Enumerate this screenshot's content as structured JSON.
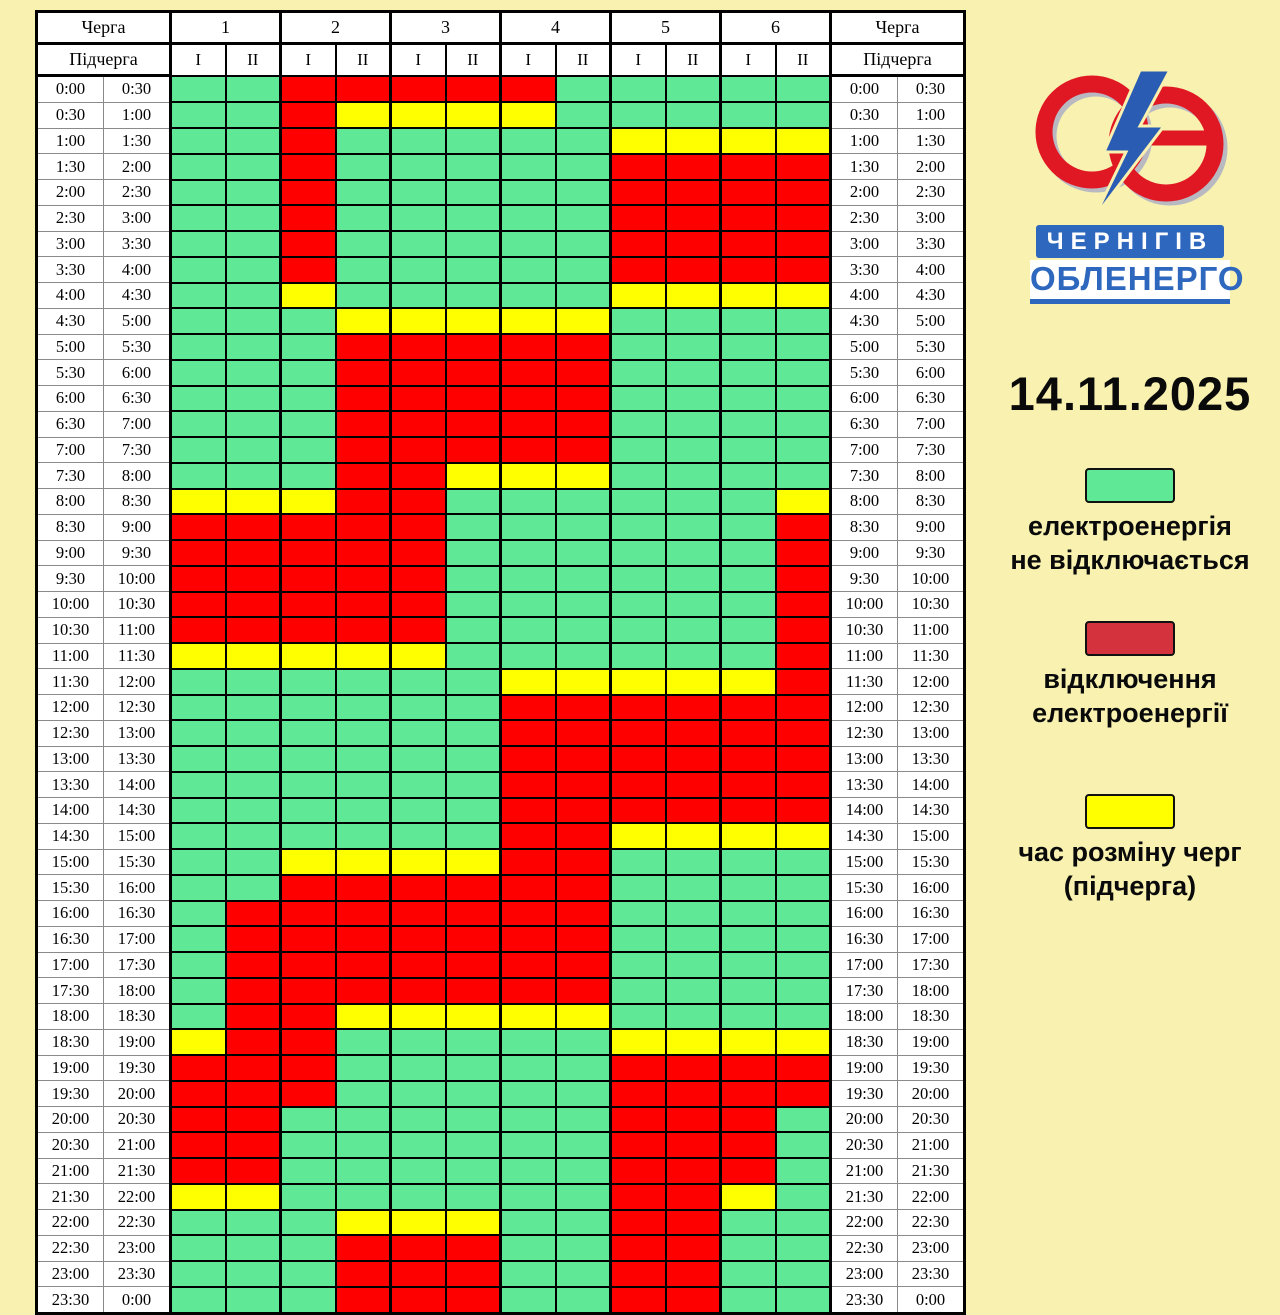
{
  "page": {
    "background": "#F8F1B0"
  },
  "date": "14.11.2025",
  "logo": {
    "city": "ЧЕРНІГІВ",
    "company": "ОБЛЕНЕРГО"
  },
  "table": {
    "header": {
      "queue_label": "Черга",
      "subqueue_label": "Підчерга",
      "queues": [
        "1",
        "2",
        "3",
        "4",
        "5",
        "6"
      ],
      "subqueues": [
        "I",
        "II"
      ]
    },
    "cell_colors": {
      "G": "#5FE896",
      "R": "#FF0000",
      "Y": "#FFFF00"
    },
    "rows": [
      {
        "start": "0:00",
        "end": "0:30",
        "cells": "GGRRRRRGGGGG"
      },
      {
        "start": "0:30",
        "end": "1:00",
        "cells": "GGRYYYYGGGGG"
      },
      {
        "start": "1:00",
        "end": "1:30",
        "cells": "GGRGGGGGYYYY"
      },
      {
        "start": "1:30",
        "end": "2:00",
        "cells": "GGRGGGGGRRRR"
      },
      {
        "start": "2:00",
        "end": "2:30",
        "cells": "GGRGGGGGRRRR"
      },
      {
        "start": "2:30",
        "end": "3:00",
        "cells": "GGRGGGGGRRRR"
      },
      {
        "start": "3:00",
        "end": "3:30",
        "cells": "GGRGGGGGRRRR"
      },
      {
        "start": "3:30",
        "end": "4:00",
        "cells": "GGRGGGGGRRRR"
      },
      {
        "start": "4:00",
        "end": "4:30",
        "cells": "GGYGGGGGYYYY"
      },
      {
        "start": "4:30",
        "end": "5:00",
        "cells": "GGGYYYYYGGGG"
      },
      {
        "start": "5:00",
        "end": "5:30",
        "cells": "GGGRRRRRGGGG"
      },
      {
        "start": "5:30",
        "end": "6:00",
        "cells": "GGGRRRRRGGGG"
      },
      {
        "start": "6:00",
        "end": "6:30",
        "cells": "GGGRRRRRGGGG"
      },
      {
        "start": "6:30",
        "end": "7:00",
        "cells": "GGGRRRRRGGGG"
      },
      {
        "start": "7:00",
        "end": "7:30",
        "cells": "GGGRRRRRGGGG"
      },
      {
        "start": "7:30",
        "end": "8:00",
        "cells": "GGGRRYYYGGGG"
      },
      {
        "start": "8:00",
        "end": "8:30",
        "cells": "YYYRRGGGGGGY"
      },
      {
        "start": "8:30",
        "end": "9:00",
        "cells": "RRRRRGGGGGGR"
      },
      {
        "start": "9:00",
        "end": "9:30",
        "cells": "RRRRRGGGGGGR"
      },
      {
        "start": "9:30",
        "end": "10:00",
        "cells": "RRRRRGGGGGGR"
      },
      {
        "start": "10:00",
        "end": "10:30",
        "cells": "RRRRRGGGGGGR"
      },
      {
        "start": "10:30",
        "end": "11:00",
        "cells": "RRRRRGGGGGGR"
      },
      {
        "start": "11:00",
        "end": "11:30",
        "cells": "YYYYYGGGGGGR"
      },
      {
        "start": "11:30",
        "end": "12:00",
        "cells": "GGGGGGYYYYYR"
      },
      {
        "start": "12:00",
        "end": "12:30",
        "cells": "GGGGGGRRRRRR"
      },
      {
        "start": "12:30",
        "end": "13:00",
        "cells": "GGGGGGRRRRRR"
      },
      {
        "start": "13:00",
        "end": "13:30",
        "cells": "GGGGGGRRRRRR"
      },
      {
        "start": "13:30",
        "end": "14:00",
        "cells": "GGGGGGRRRRRR"
      },
      {
        "start": "14:00",
        "end": "14:30",
        "cells": "GGGGGGRRRRRR"
      },
      {
        "start": "14:30",
        "end": "15:00",
        "cells": "GGGGGGRRYYYY"
      },
      {
        "start": "15:00",
        "end": "15:30",
        "cells": "GGYYYYRRGGGG"
      },
      {
        "start": "15:30",
        "end": "16:00",
        "cells": "GGRRRRRRGGGG"
      },
      {
        "start": "16:00",
        "end": "16:30",
        "cells": "GRRRRRRRGGGG"
      },
      {
        "start": "16:30",
        "end": "17:00",
        "cells": "GRRRRRRRGGGG"
      },
      {
        "start": "17:00",
        "end": "17:30",
        "cells": "GRRRRRRRGGGG"
      },
      {
        "start": "17:30",
        "end": "18:00",
        "cells": "GRRRRRRRGGGG"
      },
      {
        "start": "18:00",
        "end": "18:30",
        "cells": "GRRYYYYYGGGG"
      },
      {
        "start": "18:30",
        "end": "19:00",
        "cells": "YRRGGGGGYYYY"
      },
      {
        "start": "19:00",
        "end": "19:30",
        "cells": "RRRGGGGGRRRR"
      },
      {
        "start": "19:30",
        "end": "20:00",
        "cells": "RRRGGGGGRRRR"
      },
      {
        "start": "20:00",
        "end": "20:30",
        "cells": "RRGGGGGGRRRG"
      },
      {
        "start": "20:30",
        "end": "21:00",
        "cells": "RRGGGGGGRRRG"
      },
      {
        "start": "21:00",
        "end": "21:30",
        "cells": "RRGGGGGGRRRG"
      },
      {
        "start": "21:30",
        "end": "22:00",
        "cells": "YYGGGGGGRRYG"
      },
      {
        "start": "22:00",
        "end": "22:30",
        "cells": "GGGYYYGGRRGG"
      },
      {
        "start": "22:30",
        "end": "23:00",
        "cells": "GGGRRRGGRRGG"
      },
      {
        "start": "23:00",
        "end": "23:30",
        "cells": "GGGRRRGGRRGG"
      },
      {
        "start": "23:30",
        "end": "0:00",
        "cells": "GGGRRRGGRRGG"
      }
    ]
  },
  "legend": [
    {
      "name": "no-outage",
      "color": "#5FE896",
      "lines": [
        "електроенергія",
        "не відключається"
      ]
    },
    {
      "name": "outage",
      "color": "#D4323C",
      "lines": [
        "відключення",
        "електроенергії"
      ]
    },
    {
      "name": "queue-switch",
      "color": "#FFFF00",
      "lines": [
        "час розміну черг",
        "(підчерга)"
      ]
    }
  ]
}
